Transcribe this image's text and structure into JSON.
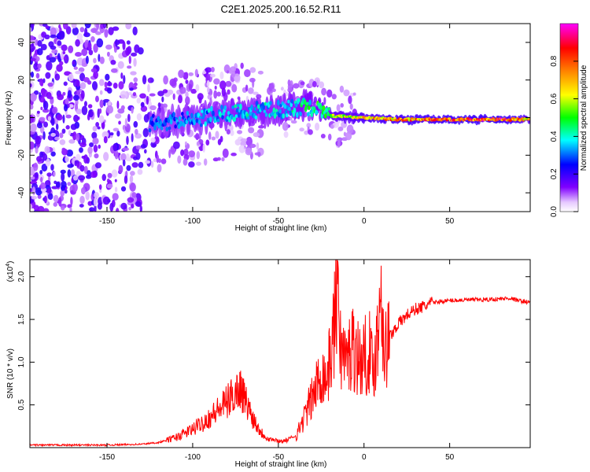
{
  "title": "C2E1.2025.200.16.52.R11",
  "chart_data": [
    {
      "type": "heatmap",
      "xlabel": "Height of straight line (km)",
      "ylabel": "Frequency (Hz)",
      "xlim": [
        -195,
        97
      ],
      "ylim": [
        -50,
        50
      ],
      "xticks": [
        -150,
        -100,
        -50,
        0,
        50
      ],
      "xtick_labels": [
        "-150",
        "-100",
        "-50",
        "0",
        "50"
      ],
      "yticks": [
        -40,
        -20,
        0,
        20,
        40
      ],
      "ytick_labels": [
        "-40",
        "-20",
        "0",
        "20",
        "40"
      ],
      "colorbar": {
        "label": "Normalized spectral amplitude",
        "range": [
          0,
          1
        ],
        "ticks": [
          0.0,
          0.2,
          0.4,
          0.6,
          0.8
        ],
        "tick_labels": [
          "0.0",
          "0.2",
          "0.4",
          "0.6",
          "0.8"
        ],
        "colors": [
          "#ffffff",
          "#8000ff",
          "#0000ff",
          "#00ffff",
          "#00ff00",
          "#ffff00",
          "#ff8000",
          "#ff0000",
          "#ff00ff"
        ]
      },
      "ridge": {
        "x": [
          -125,
          -100,
          -75,
          -50,
          -35,
          -28,
          -20,
          0,
          20,
          50,
          80,
          97
        ],
        "freq": [
          -3,
          -1,
          3,
          4,
          6,
          5,
          1,
          0,
          -1,
          -1,
          -1,
          -1
        ],
        "amplitude": [
          0.3,
          0.35,
          0.4,
          0.4,
          0.45,
          0.5,
          0.6,
          0.75,
          0.8,
          0.85,
          0.9,
          0.7
        ]
      },
      "grid": false
    },
    {
      "type": "line",
      "xlabel": "Height of straight line (km)",
      "ylabel": "SNR (10 * v/v)",
      "scale_label": "(x10",
      "scale_exp": "4",
      "scale_close": ")",
      "xlim": [
        -195,
        97
      ],
      "ylim": [
        0,
        2.2
      ],
      "xticks": [
        -150,
        -100,
        -50,
        0,
        50
      ],
      "xtick_labels": [
        "-150",
        "-100",
        "-50",
        "0",
        "50"
      ],
      "yticks": [
        0.5,
        1.0,
        1.5,
        2.0
      ],
      "ytick_labels": [
        "0.5",
        "1.0",
        "1.5",
        "2.0"
      ],
      "series": [
        {
          "color": "#ff0000",
          "x": [
            -195,
            -150,
            -130,
            -120,
            -110,
            -100,
            -90,
            -80,
            -75,
            -72,
            -70,
            -65,
            -60,
            -55,
            -50,
            -45,
            -40,
            -35,
            -32,
            -30,
            -27,
            -25,
            -22,
            -20,
            -17,
            -15,
            -14,
            -12,
            -10,
            -7,
            -5,
            -2,
            0,
            3,
            5,
            8,
            10,
            12,
            15,
            20,
            25,
            30,
            35,
            40,
            50,
            60,
            70,
            80,
            85,
            90,
            97
          ],
          "y": [
            0.02,
            0.02,
            0.03,
            0.05,
            0.1,
            0.18,
            0.3,
            0.45,
            0.55,
            0.6,
            0.5,
            0.3,
            0.15,
            0.08,
            0.05,
            0.06,
            0.12,
            0.35,
            0.5,
            0.6,
            0.75,
            0.9,
            0.8,
            1.0,
            1.5,
            2.2,
            1.2,
            1.1,
            1.0,
            1.2,
            1.15,
            1.0,
            1.05,
            1.15,
            0.9,
            1.3,
            2.0,
            1.1,
            1.3,
            1.45,
            1.55,
            1.62,
            1.65,
            1.7,
            1.72,
            1.73,
            1.73,
            1.74,
            1.75,
            1.72,
            1.7
          ]
        }
      ],
      "grid": false
    }
  ]
}
